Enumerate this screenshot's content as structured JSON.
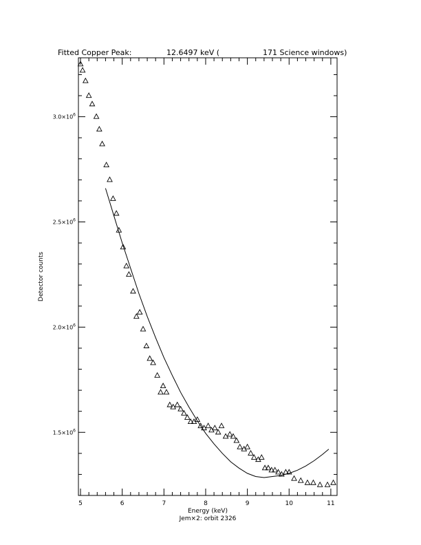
{
  "chart_data": {
    "type": "scatter",
    "title_parts": [
      "Fitted Copper Peak:",
      "12.6497 keV (",
      "171 Science windows)"
    ],
    "xlabel": "Energy (keV)",
    "ylabel": "Detector counts",
    "subtitle": "Jem×2: orbit 2326",
    "xlim": [
      4.95,
      11.15
    ],
    "ylim": [
      1200000,
      3280000
    ],
    "x_ticks": [
      5,
      6,
      7,
      8,
      9,
      10,
      11
    ],
    "x_tick_labels": [
      "5",
      "6",
      "7",
      "8",
      "9",
      "10",
      "11"
    ],
    "y_ticks": [
      1500000,
      2000000,
      2500000,
      3000000
    ],
    "y_tick_labels": [
      {
        "mantissa": "1.5×10",
        "exp": "6"
      },
      {
        "mantissa": "2.0×10",
        "exp": "6"
      },
      {
        "mantissa": "2.5×10",
        "exp": "6"
      },
      {
        "mantissa": "3.0×10",
        "exp": "6"
      }
    ],
    "series": [
      {
        "marker": "triangle",
        "x": [
          5.0,
          5.05,
          5.12,
          5.2,
          5.28,
          5.38,
          5.45,
          5.52,
          5.62,
          5.7,
          5.78,
          5.86,
          5.92,
          6.02,
          6.1,
          6.16,
          6.26,
          6.34,
          6.42,
          6.5,
          6.58,
          6.66,
          6.74,
          6.84,
          6.92,
          6.98,
          7.06,
          7.14,
          7.22,
          7.32,
          7.4,
          7.48,
          7.56,
          7.64,
          7.72,
          7.8,
          7.88,
          7.96,
          8.06,
          8.14,
          8.22,
          8.3,
          8.38,
          8.48,
          8.58,
          8.66,
          8.74,
          8.82,
          8.92,
          9.0,
          9.08,
          9.16,
          9.26,
          9.34,
          9.42,
          9.5,
          9.58,
          9.66,
          9.74,
          9.82,
          9.92,
          10.0,
          10.12,
          10.28,
          10.44,
          10.58,
          10.74,
          10.92,
          11.06
        ],
        "y": [
          3250000,
          3220000,
          3170000,
          3100000,
          3060000,
          3000000,
          2940000,
          2870000,
          2770000,
          2700000,
          2610000,
          2540000,
          2460000,
          2380000,
          2290000,
          2250000,
          2170000,
          2050000,
          2070000,
          1990000,
          1910000,
          1850000,
          1830000,
          1770000,
          1690000,
          1720000,
          1690000,
          1630000,
          1620000,
          1630000,
          1610000,
          1590000,
          1570000,
          1550000,
          1550000,
          1560000,
          1530000,
          1520000,
          1530000,
          1510000,
          1520000,
          1500000,
          1530000,
          1480000,
          1490000,
          1480000,
          1460000,
          1430000,
          1420000,
          1430000,
          1400000,
          1380000,
          1370000,
          1380000,
          1330000,
          1330000,
          1320000,
          1320000,
          1310000,
          1300000,
          1310000,
          1310000,
          1280000,
          1270000,
          1260000,
          1260000,
          1250000,
          1250000,
          1260000
        ]
      },
      {
        "type": "line",
        "x": [
          5.6,
          5.8,
          6.0,
          6.2,
          6.4,
          6.6,
          6.8,
          7.0,
          7.2,
          7.4,
          7.6,
          7.8,
          8.0,
          8.2,
          8.4,
          8.6,
          8.8,
          9.0,
          9.2,
          9.4,
          9.6,
          9.8,
          10.0,
          10.2,
          10.4,
          10.6,
          10.8,
          10.95
        ],
        "y": [
          2660000,
          2530000,
          2400000,
          2280000,
          2160000,
          2050000,
          1950000,
          1855000,
          1770000,
          1690000,
          1620000,
          1555000,
          1495000,
          1445000,
          1400000,
          1360000,
          1330000,
          1305000,
          1290000,
          1285000,
          1290000,
          1295000,
          1305000,
          1320000,
          1340000,
          1365000,
          1395000,
          1420000
        ]
      }
    ]
  }
}
